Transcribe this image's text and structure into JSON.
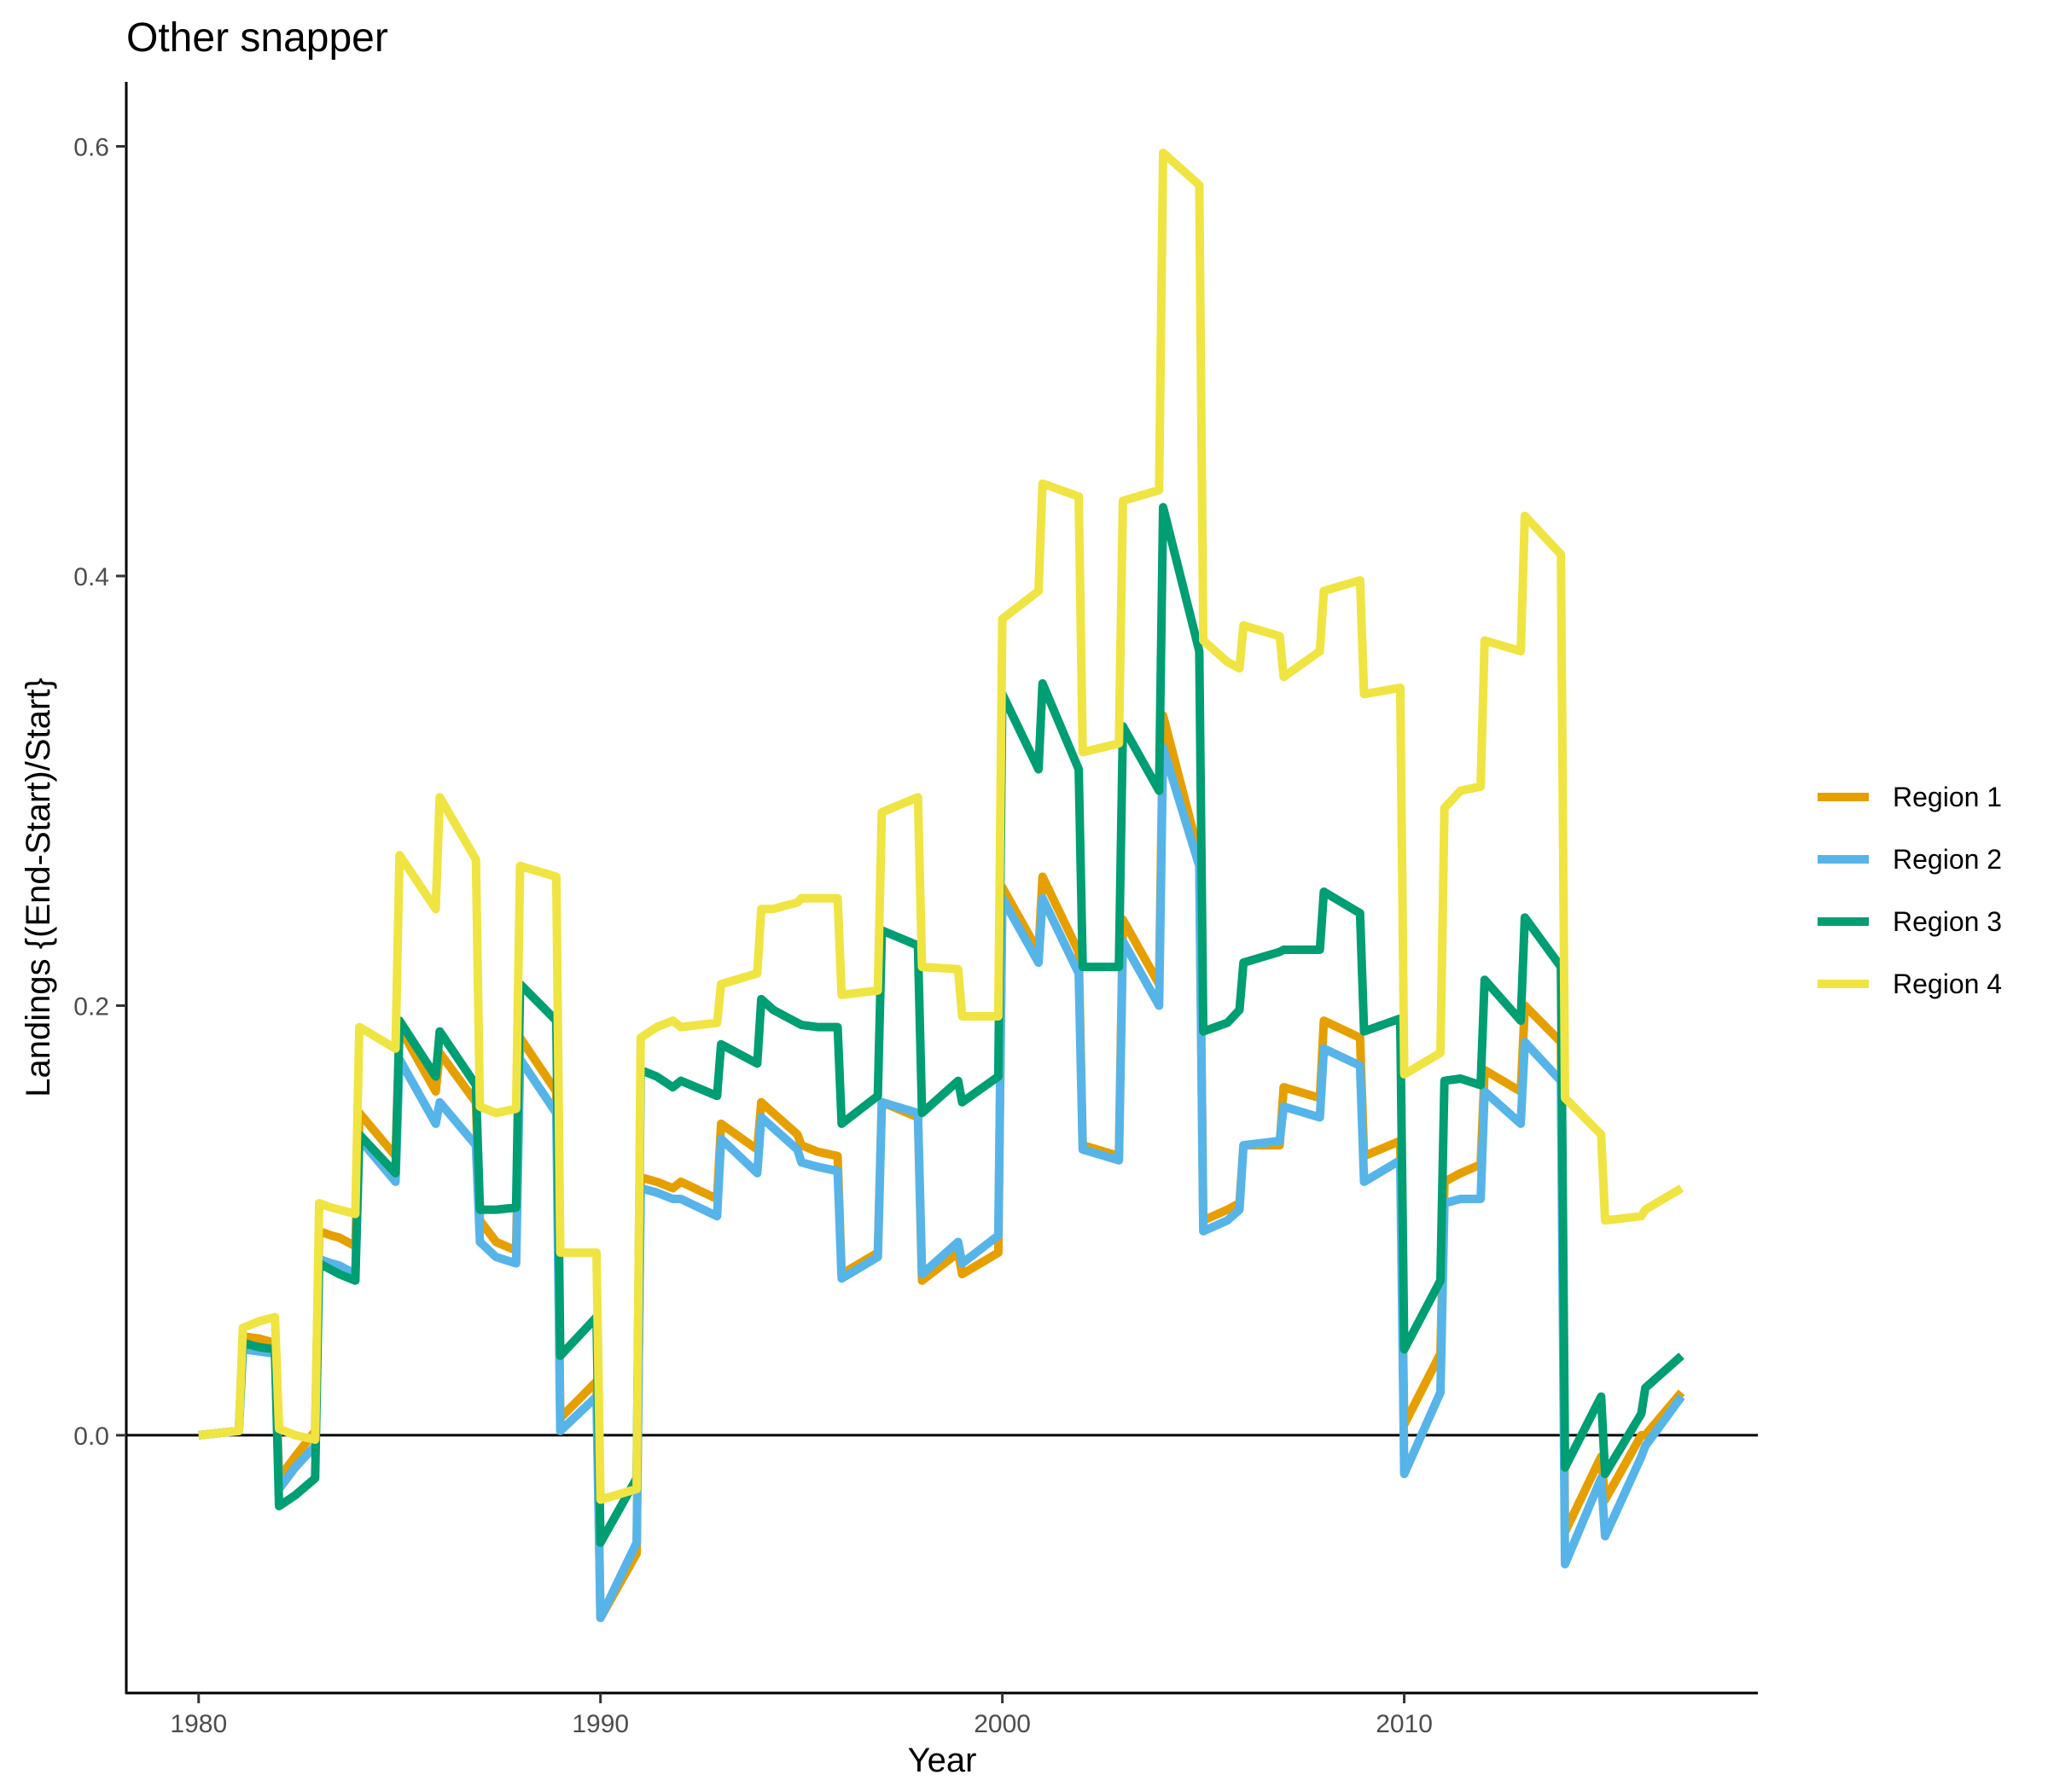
{
  "chart_data": {
    "type": "line",
    "title": "Other snapper",
    "xlabel": "Year",
    "ylabel": "Landings {(End-Start)/Start}",
    "xlim": [
      1978.2,
      2018.8
    ],
    "ylim": [
      -0.12,
      0.63
    ],
    "x_ticks": [
      1980,
      1990,
      2000,
      2010
    ],
    "x_tick_labels": [
      "1980",
      "1990",
      "2000",
      "2010"
    ],
    "y_ticks": [
      0.0,
      0.2,
      0.4,
      0.6
    ],
    "y_tick_labels": [
      "0.0",
      "0.2",
      "0.4",
      "0.6"
    ],
    "reference_line_y": 0.0,
    "grid": false,
    "legend_position": "right",
    "series": [
      {
        "name": "Region 1",
        "color": "#E69F00",
        "x": [
          1980.0,
          1981.0,
          1981.1,
          1981.5,
          1981.9,
          1982.0,
          1982.4,
          1982.9,
          1983.0,
          1983.3,
          1983.5,
          1983.9,
          1984.0,
          1984.9,
          1985.0,
          1985.9,
          1986.0,
          1986.9,
          1987.0,
          1987.4,
          1987.9,
          1988.0,
          1988.9,
          1989.0,
          1989.9,
          1990.0,
          1990.9,
          1991.0,
          1991.4,
          1991.8,
          1992.0,
          1992.9,
          1993.0,
          1993.9,
          1994.0,
          1994.3,
          1994.9,
          1995.0,
          1995.4,
          1995.9,
          1996.0,
          1996.9,
          1997.0,
          1997.9,
          1998.0,
          1998.9,
          1999.0,
          1999.9,
          2000.0,
          2000.9,
          2001.0,
          2001.9,
          2002.0,
          2002.9,
          2003.0,
          2003.9,
          2004.0,
          2004.9,
          2005.0,
          2005.6,
          2005.9,
          2006.0,
          2006.9,
          2007.0,
          2007.9,
          2008.0,
          2008.9,
          2009.0,
          2009.9,
          2010.0,
          2010.9,
          2011.0,
          2011.4,
          2011.9,
          2012.0,
          2012.9,
          2013.0,
          2013.9,
          2014.0,
          2014.9,
          2015.0,
          2015.9,
          2016.0,
          2016.9
        ],
        "y": [
          0.0,
          0.002,
          0.046,
          0.045,
          0.043,
          -0.02,
          -0.01,
          0.002,
          0.095,
          0.093,
          0.092,
          0.088,
          0.15,
          0.13,
          0.19,
          0.16,
          0.178,
          0.155,
          0.1,
          0.09,
          0.086,
          0.185,
          0.16,
          0.008,
          0.025,
          -0.085,
          -0.055,
          0.12,
          0.118,
          0.115,
          0.118,
          0.11,
          0.145,
          0.133,
          0.155,
          0.15,
          0.14,
          0.135,
          0.132,
          0.13,
          0.075,
          0.085,
          0.155,
          0.148,
          0.072,
          0.085,
          0.075,
          0.085,
          0.255,
          0.225,
          0.26,
          0.225,
          0.135,
          0.13,
          0.24,
          0.21,
          0.335,
          0.27,
          0.1,
          0.105,
          0.108,
          0.135,
          0.135,
          0.162,
          0.157,
          0.193,
          0.185,
          0.13,
          0.137,
          0.005,
          0.038,
          0.118,
          0.122,
          0.126,
          0.17,
          0.16,
          0.2,
          0.183,
          -0.045,
          -0.01,
          -0.03,
          0.0,
          0.0,
          0.02
        ]
      },
      {
        "name": "Region 2",
        "color": "#56B4E9",
        "x": [
          1980.0,
          1981.0,
          1981.1,
          1981.5,
          1981.9,
          1982.0,
          1982.4,
          1982.9,
          1983.0,
          1983.3,
          1983.5,
          1983.9,
          1984.0,
          1984.9,
          1985.0,
          1985.9,
          1986.0,
          1986.9,
          1987.0,
          1987.4,
          1987.9,
          1988.0,
          1988.9,
          1989.0,
          1989.9,
          1990.0,
          1990.9,
          1991.0,
          1991.4,
          1991.8,
          1992.0,
          1992.9,
          1993.0,
          1993.9,
          1994.0,
          1994.3,
          1994.9,
          1995.0,
          1995.4,
          1995.9,
          1996.0,
          1996.9,
          1997.0,
          1997.9,
          1998.0,
          1998.9,
          1999.0,
          1999.9,
          2000.0,
          2000.9,
          2001.0,
          2001.9,
          2002.0,
          2002.9,
          2003.0,
          2003.9,
          2004.0,
          2004.9,
          2005.0,
          2005.6,
          2005.9,
          2006.0,
          2006.9,
          2007.0,
          2007.9,
          2008.0,
          2008.9,
          2009.0,
          2009.9,
          2010.0,
          2010.9,
          2011.0,
          2011.4,
          2011.9,
          2012.0,
          2012.9,
          2013.0,
          2013.9,
          2014.0,
          2014.9,
          2015.0,
          2015.9,
          2016.0,
          2016.9
        ],
        "y": [
          0.0,
          0.002,
          0.04,
          0.039,
          0.038,
          -0.025,
          -0.015,
          -0.005,
          0.082,
          0.08,
          0.079,
          0.075,
          0.138,
          0.118,
          0.175,
          0.145,
          0.155,
          0.135,
          0.09,
          0.083,
          0.08,
          0.175,
          0.15,
          0.002,
          0.018,
          -0.085,
          -0.05,
          0.115,
          0.113,
          0.11,
          0.11,
          0.102,
          0.138,
          0.122,
          0.148,
          0.143,
          0.133,
          0.127,
          0.125,
          0.123,
          0.073,
          0.083,
          0.155,
          0.15,
          0.075,
          0.09,
          0.08,
          0.093,
          0.25,
          0.22,
          0.25,
          0.215,
          0.133,
          0.128,
          0.23,
          0.2,
          0.32,
          0.265,
          0.095,
          0.1,
          0.105,
          0.135,
          0.137,
          0.153,
          0.148,
          0.18,
          0.172,
          0.118,
          0.128,
          -0.018,
          0.02,
          0.108,
          0.11,
          0.11,
          0.16,
          0.145,
          0.183,
          0.165,
          -0.06,
          -0.02,
          -0.047,
          -0.01,
          -0.005,
          0.018
        ]
      },
      {
        "name": "Region 3",
        "color": "#009E73",
        "x": [
          1980.0,
          1981.0,
          1981.1,
          1981.5,
          1981.9,
          1982.0,
          1982.4,
          1982.9,
          1983.0,
          1983.3,
          1983.5,
          1983.9,
          1984.0,
          1984.9,
          1985.0,
          1985.9,
          1986.0,
          1986.9,
          1987.0,
          1987.4,
          1987.9,
          1988.0,
          1988.9,
          1989.0,
          1989.9,
          1990.0,
          1990.9,
          1991.0,
          1991.4,
          1991.8,
          1992.0,
          1992.9,
          1993.0,
          1993.9,
          1994.0,
          1994.3,
          1994.9,
          1995.0,
          1995.4,
          1995.9,
          1996.0,
          1996.9,
          1997.0,
          1997.9,
          1998.0,
          1998.9,
          1999.0,
          1999.9,
          2000.0,
          2000.9,
          2001.0,
          2001.9,
          2002.0,
          2002.9,
          2003.0,
          2003.9,
          2004.0,
          2004.9,
          2005.0,
          2005.6,
          2005.9,
          2006.0,
          2006.9,
          2007.0,
          2007.9,
          2008.0,
          2008.9,
          2009.0,
          2009.9,
          2010.0,
          2010.9,
          2011.0,
          2011.4,
          2011.9,
          2012.0,
          2012.9,
          2013.0,
          2013.9,
          2014.0,
          2014.9,
          2015.0,
          2015.9,
          2016.0,
          2016.9
        ],
        "y": [
          0.0,
          0.002,
          0.043,
          0.041,
          0.04,
          -0.033,
          -0.028,
          -0.02,
          0.08,
          0.077,
          0.075,
          0.072,
          0.14,
          0.122,
          0.193,
          0.167,
          0.188,
          0.163,
          0.105,
          0.105,
          0.106,
          0.21,
          0.193,
          0.037,
          0.055,
          -0.05,
          -0.02,
          0.17,
          0.167,
          0.162,
          0.165,
          0.158,
          0.182,
          0.173,
          0.203,
          0.198,
          0.192,
          0.191,
          0.19,
          0.19,
          0.145,
          0.158,
          0.235,
          0.228,
          0.15,
          0.165,
          0.155,
          0.167,
          0.345,
          0.31,
          0.35,
          0.31,
          0.218,
          0.218,
          0.33,
          0.3,
          0.432,
          0.365,
          0.188,
          0.192,
          0.198,
          0.22,
          0.225,
          0.226,
          0.226,
          0.253,
          0.243,
          0.188,
          0.194,
          0.04,
          0.072,
          0.165,
          0.166,
          0.163,
          0.212,
          0.193,
          0.241,
          0.218,
          -0.015,
          0.018,
          -0.018,
          0.01,
          0.022,
          0.037
        ]
      },
      {
        "name": "Region 4",
        "color": "#F0E442",
        "x": [
          1980.0,
          1981.0,
          1981.1,
          1981.5,
          1981.9,
          1982.0,
          1982.4,
          1982.9,
          1983.0,
          1983.3,
          1983.5,
          1983.9,
          1984.0,
          1984.9,
          1985.0,
          1985.9,
          1986.0,
          1986.9,
          1987.0,
          1987.4,
          1987.9,
          1988.0,
          1988.9,
          1989.0,
          1989.9,
          1990.0,
          1990.9,
          1991.0,
          1991.4,
          1991.8,
          1992.0,
          1992.9,
          1993.0,
          1993.9,
          1994.0,
          1994.3,
          1994.9,
          1995.0,
          1995.4,
          1995.9,
          1996.0,
          1996.9,
          1997.0,
          1997.9,
          1998.0,
          1998.9,
          1999.0,
          1999.9,
          2000.0,
          2000.9,
          2001.0,
          2001.9,
          2002.0,
          2002.9,
          2003.0,
          2003.9,
          2004.0,
          2004.9,
          2005.0,
          2005.6,
          2005.9,
          2006.0,
          2006.9,
          2007.0,
          2007.9,
          2008.0,
          2008.9,
          2009.0,
          2009.9,
          2010.0,
          2010.9,
          2011.0,
          2011.4,
          2011.9,
          2012.0,
          2012.9,
          2013.0,
          2013.9,
          2014.0,
          2014.9,
          2015.0,
          2015.9,
          2016.0,
          2016.9
        ],
        "y": [
          0.0,
          0.002,
          0.05,
          0.053,
          0.055,
          0.003,
          0.0,
          -0.002,
          0.108,
          0.106,
          0.105,
          0.103,
          0.19,
          0.18,
          0.27,
          0.245,
          0.297,
          0.268,
          0.153,
          0.15,
          0.152,
          0.265,
          0.26,
          0.085,
          0.085,
          -0.03,
          -0.025,
          0.185,
          0.19,
          0.193,
          0.19,
          0.192,
          0.21,
          0.215,
          0.245,
          0.245,
          0.248,
          0.25,
          0.25,
          0.25,
          0.205,
          0.207,
          0.29,
          0.297,
          0.218,
          0.217,
          0.195,
          0.195,
          0.38,
          0.393,
          0.443,
          0.437,
          0.318,
          0.322,
          0.435,
          0.44,
          0.597,
          0.582,
          0.37,
          0.36,
          0.357,
          0.377,
          0.372,
          0.353,
          0.365,
          0.393,
          0.398,
          0.345,
          0.348,
          0.168,
          0.178,
          0.292,
          0.3,
          0.302,
          0.37,
          0.365,
          0.428,
          0.41,
          0.157,
          0.14,
          0.1,
          0.102,
          0.105,
          0.115
        ]
      }
    ]
  }
}
